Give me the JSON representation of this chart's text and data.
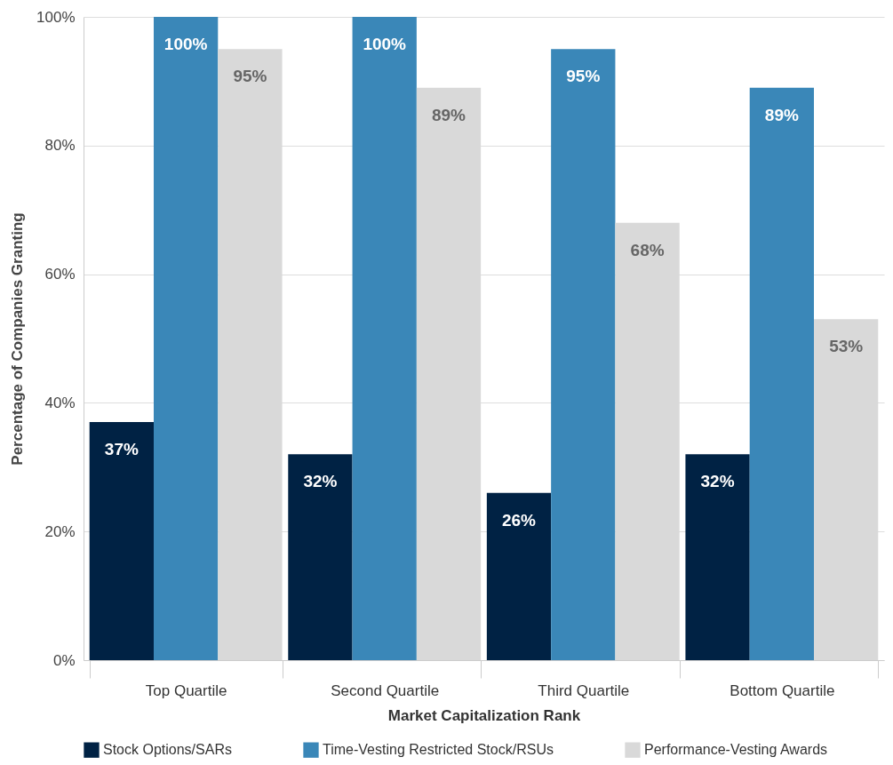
{
  "chart_data": {
    "type": "bar",
    "xlabel": "Market Capitalization Rank",
    "ylabel": "Percentage of Companies Granting",
    "categories": [
      "Top Quartile",
      "Second Quartile",
      "Third Quartile",
      "Bottom Quartile"
    ],
    "series": [
      {
        "name": "Stock Options/SARs",
        "color": "#002244",
        "values": [
          37,
          32,
          26,
          32
        ],
        "value_labels": [
          "37%",
          "32%",
          "26%",
          "32%"
        ]
      },
      {
        "name": "Time-Vesting Restricted Stock/RSUs",
        "color": "#3a87b8",
        "values": [
          100,
          100,
          95,
          89
        ],
        "value_labels": [
          "100%",
          "100%",
          "95%",
          "89%"
        ]
      },
      {
        "name": "Performance-Vesting Awards",
        "color": "#d9d9d9",
        "values": [
          95,
          89,
          68,
          53
        ],
        "value_labels": [
          "95%",
          "89%",
          "68%",
          "53%"
        ]
      }
    ],
    "ylim": [
      0,
      100
    ],
    "yticks": [
      {
        "value": 0,
        "label": "0%"
      },
      {
        "value": 20,
        "label": "20%"
      },
      {
        "value": 40,
        "label": "40%"
      },
      {
        "value": 60,
        "label": "60%"
      },
      {
        "value": 80,
        "label": "80%"
      },
      {
        "value": 100,
        "label": "100%"
      }
    ],
    "grid": "y",
    "legend": "bottom"
  }
}
